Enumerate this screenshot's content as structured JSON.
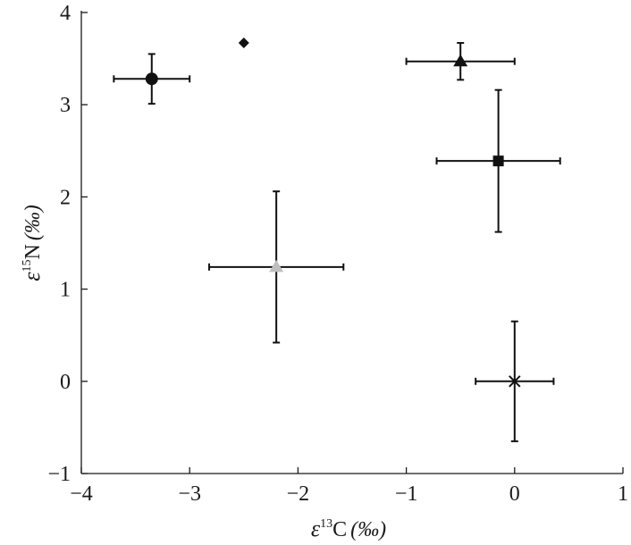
{
  "chart_data": {
    "type": "scatter",
    "title": "",
    "xlabel": {
      "symbol": "ε",
      "sup": "13",
      "base": "C",
      "unit": "(‰)"
    },
    "ylabel": {
      "symbol": "ε",
      "sup": "15",
      "base": "N",
      "unit": "(‰)"
    },
    "xlim": [
      -4,
      1
    ],
    "ylim": [
      -1,
      4
    ],
    "xticks": [
      -4,
      -3,
      -2,
      -1,
      0,
      1
    ],
    "yticks": [
      -1,
      0,
      1,
      2,
      3,
      4
    ],
    "xtick_labels": [
      "−4",
      "−3",
      "−2",
      "−1",
      "0",
      "1"
    ],
    "ytick_labels": [
      "−1",
      "0",
      "1",
      "2",
      "3",
      "4"
    ],
    "grid": false,
    "legend": "none",
    "points": [
      {
        "marker": "circle",
        "color": "#111111",
        "x": -3.35,
        "y": 3.28,
        "xerr": 0.35,
        "yerr": 0.27
      },
      {
        "marker": "diamond",
        "color": "#111111",
        "x": -2.5,
        "y": 3.67,
        "xerr": 0,
        "yerr": 0
      },
      {
        "marker": "triangle",
        "color": "#111111",
        "x": -0.5,
        "y": 3.47,
        "xerr": 0.5,
        "yerr": 0.2
      },
      {
        "marker": "square",
        "color": "#111111",
        "x": -0.15,
        "y": 2.39,
        "xerr": 0.57,
        "yerr": 0.77
      },
      {
        "marker": "triangle",
        "color": "#bfbfbf",
        "x": -2.2,
        "y": 1.24,
        "xerr": 0.62,
        "yerr": 0.82
      },
      {
        "marker": "cross",
        "color": "#111111",
        "x": 0.0,
        "y": 0.0,
        "xerr": 0.36,
        "yerr": 0.65
      }
    ]
  }
}
